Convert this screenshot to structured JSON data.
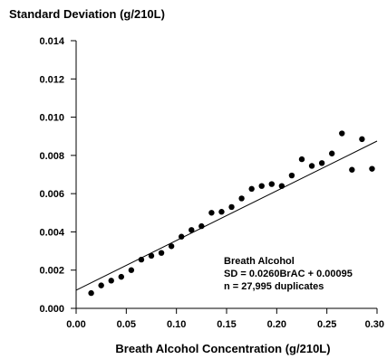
{
  "chart_data": {
    "type": "scatter",
    "ylabel": "Standard Deviation (g/210L)",
    "xlabel": "Breath Alcohol Concentration (g/210L)",
    "xlim": [
      0,
      0.3
    ],
    "ylim": [
      0,
      0.014
    ],
    "x_ticks": [
      0.0,
      0.05,
      0.1,
      0.15,
      0.2,
      0.25,
      0.3
    ],
    "x_tick_labels": [
      "0.00",
      "0.05",
      "0.10",
      "0.15",
      "0.20",
      "0.25",
      "0.30"
    ],
    "y_ticks": [
      0.0,
      0.002,
      0.004,
      0.006,
      0.008,
      0.01,
      0.012,
      0.014
    ],
    "y_tick_labels": [
      "0.000",
      "0.002",
      "0.004",
      "0.006",
      "0.008",
      "0.010",
      "0.012",
      "0.014"
    ],
    "grid": false,
    "points": [
      {
        "x": 0.015,
        "y": 0.0008
      },
      {
        "x": 0.025,
        "y": 0.0012
      },
      {
        "x": 0.035,
        "y": 0.00145
      },
      {
        "x": 0.045,
        "y": 0.00165
      },
      {
        "x": 0.055,
        "y": 0.002
      },
      {
        "x": 0.065,
        "y": 0.00255
      },
      {
        "x": 0.075,
        "y": 0.00275
      },
      {
        "x": 0.085,
        "y": 0.0029
      },
      {
        "x": 0.095,
        "y": 0.00325
      },
      {
        "x": 0.105,
        "y": 0.00375
      },
      {
        "x": 0.115,
        "y": 0.0041
      },
      {
        "x": 0.125,
        "y": 0.0043
      },
      {
        "x": 0.135,
        "y": 0.005
      },
      {
        "x": 0.145,
        "y": 0.00505
      },
      {
        "x": 0.155,
        "y": 0.0053
      },
      {
        "x": 0.165,
        "y": 0.00575
      },
      {
        "x": 0.175,
        "y": 0.00625
      },
      {
        "x": 0.185,
        "y": 0.0064
      },
      {
        "x": 0.195,
        "y": 0.0065
      },
      {
        "x": 0.205,
        "y": 0.0064
      },
      {
        "x": 0.215,
        "y": 0.00695
      },
      {
        "x": 0.225,
        "y": 0.0078
      },
      {
        "x": 0.235,
        "y": 0.00745
      },
      {
        "x": 0.245,
        "y": 0.0076
      },
      {
        "x": 0.255,
        "y": 0.0081
      },
      {
        "x": 0.265,
        "y": 0.00915
      },
      {
        "x": 0.275,
        "y": 0.00725
      },
      {
        "x": 0.285,
        "y": 0.00885
      },
      {
        "x": 0.295,
        "y": 0.0073
      }
    ],
    "fit_line": {
      "slope": 0.026,
      "intercept": 0.00095,
      "x_range": [
        0,
        0.3
      ]
    },
    "annotation": [
      "Breath Alcohol",
      "SD = 0.0260BrAC + 0.00095",
      "n = 27,995 duplicates"
    ]
  }
}
